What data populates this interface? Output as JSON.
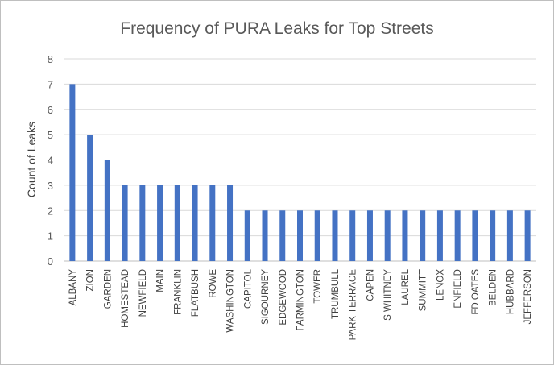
{
  "chart_data": {
    "type": "bar",
    "title": "Frequency of PURA Leaks for Top Streets",
    "xlabel": "",
    "ylabel": "Count of Leaks",
    "ylim": [
      0,
      8
    ],
    "yticks": [
      0,
      1,
      2,
      3,
      4,
      5,
      6,
      7,
      8
    ],
    "grid": true,
    "legend": "none",
    "bar_color": "#4472c4",
    "categories": [
      "ALBANY",
      "ZION",
      "GARDEN",
      "HOMESTEAD",
      "NEWFIELD",
      "MAIN",
      "FRANKLIN",
      "FLATBUSH",
      "ROWE",
      "WASHINGTON",
      "CAPITOL",
      "SIGOURNEY",
      "EDGEWOOD",
      "FARMINGTON",
      "TOWER",
      "TRUMBULL",
      "PARK TERRACE",
      "CAPEN",
      "S WHITNEY",
      "LAUREL",
      "SUMMITT",
      "LENOX",
      "ENFIELD",
      "FD OATES",
      "BELDEN",
      "HUBBARD",
      "JEFFERSON"
    ],
    "values": [
      7,
      5,
      4,
      3,
      3,
      3,
      3,
      3,
      3,
      3,
      2,
      2,
      2,
      2,
      2,
      2,
      2,
      2,
      2,
      2,
      2,
      2,
      2,
      2,
      2,
      2,
      2
    ]
  }
}
